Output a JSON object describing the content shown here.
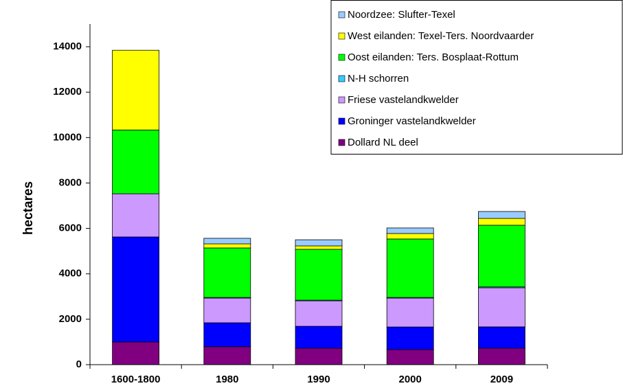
{
  "chart_data": {
    "type": "bar",
    "stacked": true,
    "ylabel": "hectares",
    "categories": [
      "1600-1800",
      "1980",
      "1990",
      "2000",
      "2009"
    ],
    "series": [
      {
        "name": "Dollard NL deel",
        "color": "#800080",
        "values": [
          1000,
          790,
          725,
          665,
          725
        ]
      },
      {
        "name": "Groninger vastelandkwelder",
        "color": "#0000ff",
        "values": [
          4625,
          1055,
          965,
          995,
          940
        ]
      },
      {
        "name": "Friese vastelandkwelder",
        "color": "#cc99ff",
        "values": [
          1900,
          1085,
          1120,
          1270,
          1720
        ]
      },
      {
        "name": "N-H schorren",
        "color": "#33ccff",
        "values": [
          0,
          30,
          30,
          30,
          40
        ]
      },
      {
        "name": "Oost eilanden: Ters. Bosplaat-Rottum",
        "color": "#00ff00",
        "values": [
          2810,
          2180,
          2240,
          2575,
          2715
        ]
      },
      {
        "name": "West eilanden: Texel-Ters. Noordvaarder",
        "color": "#ffff00",
        "values": [
          3510,
          180,
          150,
          240,
          300
        ]
      },
      {
        "name": "Noordzee: Slufter-Texel",
        "color": "#99ccff",
        "values": [
          0,
          245,
          270,
          245,
          305
        ]
      }
    ],
    "ylim": [
      0,
      15000
    ],
    "yticks": [
      0,
      2000,
      4000,
      6000,
      8000,
      10000,
      12000,
      14000
    ],
    "grid": false,
    "legend": "upper right"
  }
}
